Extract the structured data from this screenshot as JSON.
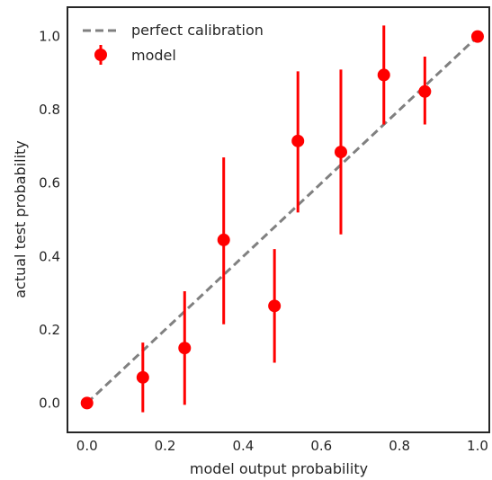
{
  "chart_data": {
    "type": "scatter",
    "title": "",
    "xlabel": "model output probability",
    "ylabel": "actual test probability",
    "xlim": [
      -0.05,
      1.03
    ],
    "ylim": [
      -0.08,
      1.08
    ],
    "xticks": [
      "0.0",
      "0.2",
      "0.4",
      "0.6",
      "0.8",
      "1.0"
    ],
    "yticks": [
      "0.0",
      "0.2",
      "0.4",
      "0.6",
      "0.8",
      "1.0"
    ],
    "xtick_values": [
      0,
      0.2,
      0.4,
      0.6,
      0.8,
      1.0
    ],
    "ytick_values": [
      0,
      0.2,
      0.4,
      0.6,
      0.8,
      1.0
    ],
    "grid": false,
    "legend_position": "top-left",
    "series": [
      {
        "name": "perfect calibration",
        "kind": "line",
        "style": "dashed",
        "color": "#808080",
        "x": [
          0,
          1
        ],
        "y": [
          0,
          1
        ]
      },
      {
        "name": "model",
        "kind": "errorbar",
        "color": "#ff0000",
        "x": [
          0.0,
          0.143,
          0.25,
          0.35,
          0.48,
          0.54,
          0.65,
          0.76,
          0.865,
          1.0
        ],
        "y": [
          0.0,
          0.07,
          0.15,
          0.445,
          0.265,
          0.715,
          0.685,
          0.895,
          0.85,
          1.0
        ],
        "yerr_low": [
          0.0,
          -0.025,
          -0.005,
          0.215,
          0.11,
          0.52,
          0.46,
          0.76,
          0.76,
          1.0
        ],
        "yerr_high": [
          0.0,
          0.165,
          0.305,
          0.67,
          0.42,
          0.905,
          0.91,
          1.03,
          0.945,
          1.0
        ]
      }
    ]
  }
}
